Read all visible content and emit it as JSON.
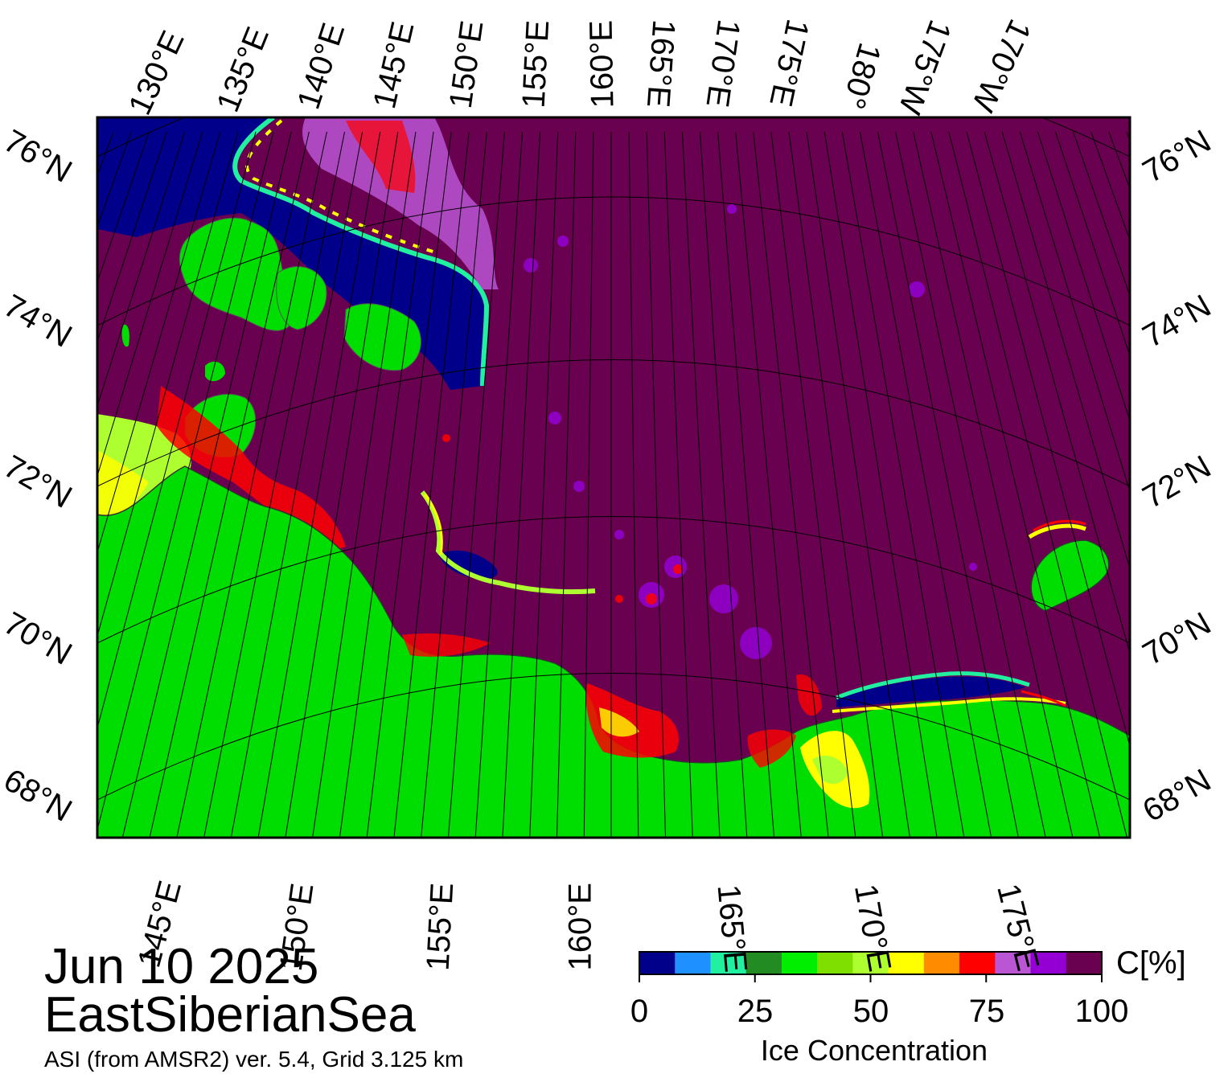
{
  "map": {
    "title_date": "Jun 10 2025",
    "region": "EastSiberianSea",
    "source": "ASI (from AMSR2) ver. 5.4,  Grid 3.125 km",
    "top_lon_labels": [
      "130°E",
      "135°E",
      "140°E",
      "145°E",
      "150°E",
      "155°E",
      "160°E",
      "165°E",
      "170°E",
      "175°E",
      "180°",
      "175°W",
      "170°W"
    ],
    "bottom_lon_labels": [
      "145°E",
      "150°E",
      "155°E",
      "160°E",
      "165°E",
      "170°E",
      "175°E"
    ],
    "lat_labels_left": [
      "76°N",
      "74°N",
      "72°N",
      "70°N",
      "68°N"
    ],
    "lat_labels_right": [
      "76°N",
      "74°N",
      "72°N",
      "70°N",
      "68°N"
    ],
    "colors": {
      "land": "#00dd00",
      "open_water": "#6a0050",
      "high_ice": "#00008b",
      "frame": "#000000"
    }
  },
  "colorbar": {
    "title": "Ice Concentration",
    "unit": "C[%]",
    "ticks": [
      "0",
      "25",
      "50",
      "75",
      "100"
    ],
    "colors": [
      "#00008b",
      "#1e90ff",
      "#20f0a0",
      "#228b22",
      "#00ee00",
      "#7fe000",
      "#adff2f",
      "#ffff00",
      "#ff8c00",
      "#ff0000",
      "#ba55d3",
      "#9400d3",
      "#6a0050"
    ]
  }
}
